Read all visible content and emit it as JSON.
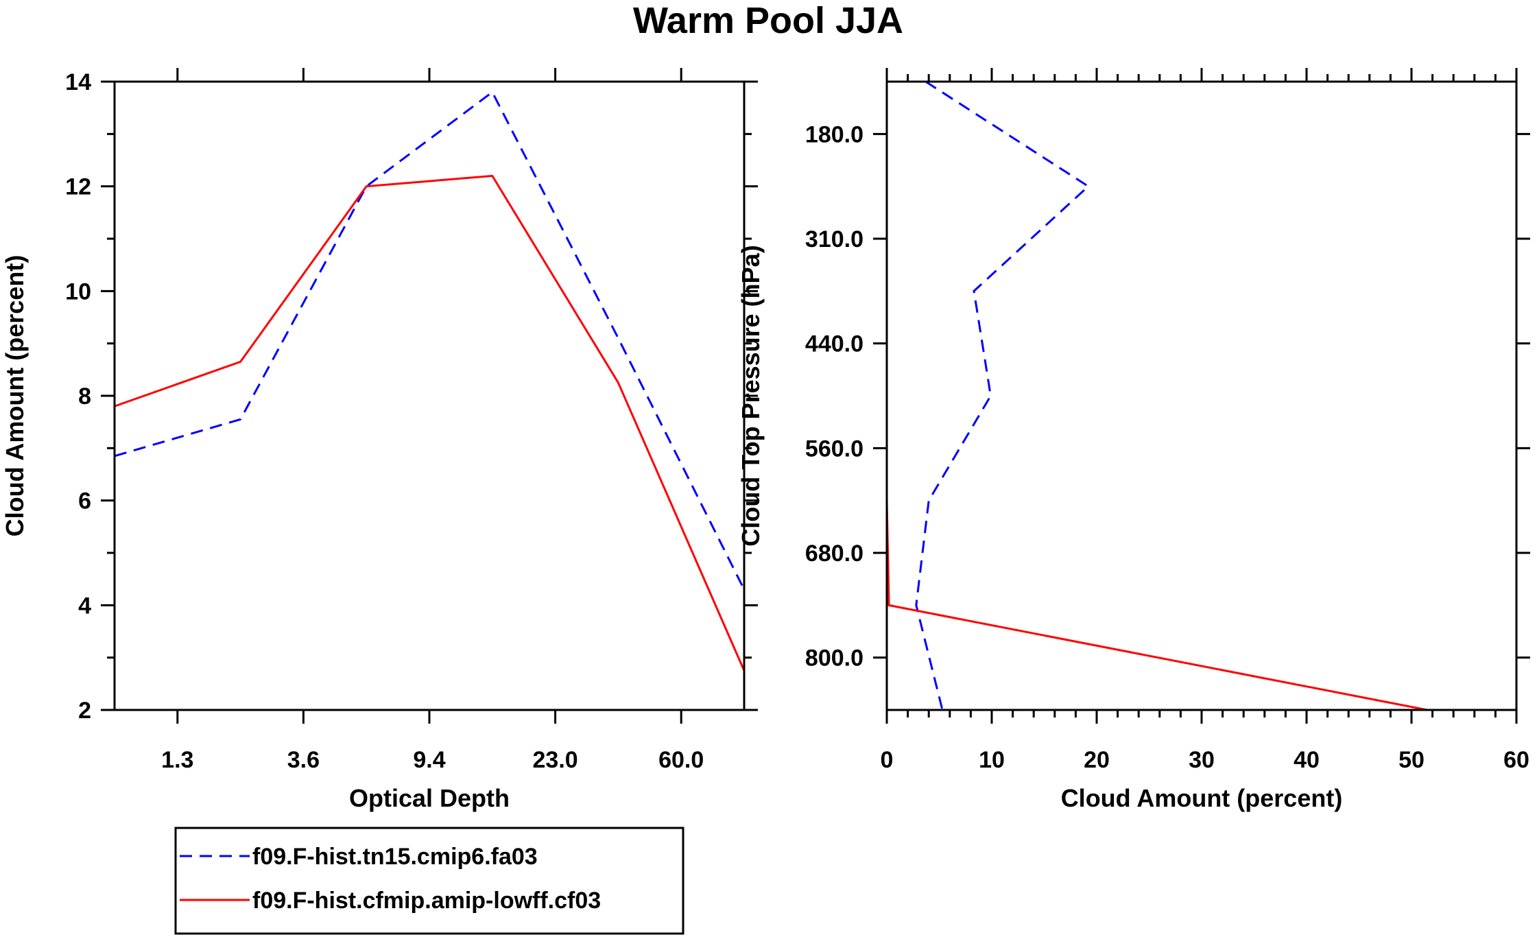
{
  "title": "Warm Pool JJA",
  "chart_data": [
    {
      "type": "line",
      "xlabel": "Optical Depth",
      "ylabel": "Cloud Amount (percent)",
      "x_index": [
        0,
        1,
        2,
        3,
        4,
        5
      ],
      "x_tick_positions": [
        0.5,
        1.5,
        2.5,
        3.5,
        4.5
      ],
      "x_tick_labels": [
        "1.3",
        "3.6",
        "9.4",
        "23.0",
        "60.0"
      ],
      "xlim": [
        0,
        5
      ],
      "ylim": [
        2,
        14
      ],
      "y_ticks": [
        2,
        4,
        6,
        8,
        10,
        12,
        14
      ],
      "series": [
        {
          "name": "f09.F-hist.tn15.cmip6.fa03",
          "color": "#0000ff",
          "dashed": true,
          "values": [
            6.85,
            7.55,
            12.0,
            13.8,
            9.1,
            4.3
          ]
        },
        {
          "name": "f09.F-hist.cfmip.amip-lowff.cf03",
          "color": "#ff0000",
          "dashed": false,
          "values": [
            7.8,
            8.65,
            12.0,
            12.2,
            8.25,
            2.75
          ]
        }
      ]
    },
    {
      "type": "line",
      "xlabel": "Cloud Amount (percent)",
      "ylabel": "Cloud Top Pressure (hPa)",
      "xlim": [
        0,
        60
      ],
      "x_ticks": [
        0,
        10,
        20,
        30,
        40,
        50,
        60
      ],
      "y_index_range": [
        0,
        6
      ],
      "y_tick_positions": [
        0.5,
        1.5,
        2.5,
        3.5,
        4.5,
        5.5
      ],
      "y_tick_labels": [
        "180.0",
        "310.0",
        "440.0",
        "560.0",
        "680.0",
        "800.0"
      ],
      "series": [
        {
          "name": "f09.F-hist.tn15.cmip6.fa03",
          "color": "#0000ff",
          "dashed": true,
          "y_index": [
            0,
            1,
            2,
            3,
            4,
            5,
            6
          ],
          "values": [
            3.7,
            19.2,
            8.3,
            9.9,
            4.0,
            2.8,
            5.3
          ]
        },
        {
          "name": "f09.F-hist.cfmip.amip-lowff.cf03",
          "color": "#ff0000",
          "dashed": false,
          "y_index": [
            0,
            1,
            2,
            3,
            4,
            5,
            6
          ],
          "values": [
            0.0,
            0.0,
            0.0,
            0.0,
            0.0,
            0.2,
            51.5
          ]
        }
      ]
    }
  ],
  "legend": [
    {
      "label": "f09.F-hist.tn15.cmip6.fa03",
      "color": "#0000ff",
      "dashed": true
    },
    {
      "label": "f09.F-hist.cfmip.amip-lowff.cf03",
      "color": "#ff0000",
      "dashed": false
    }
  ]
}
